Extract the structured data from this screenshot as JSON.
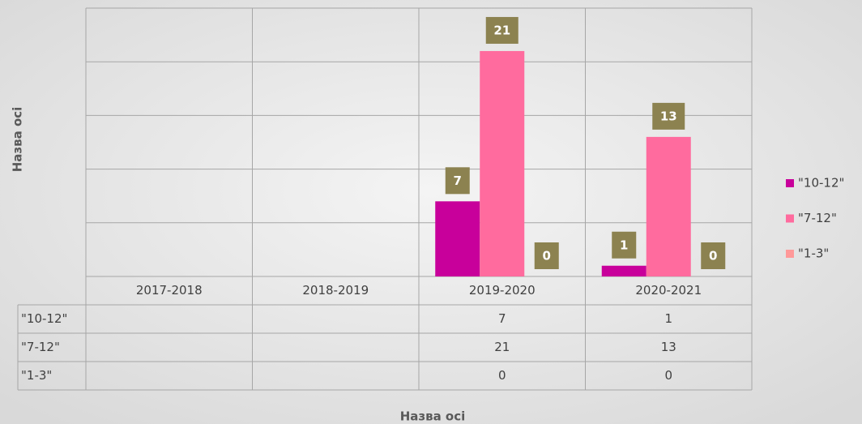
{
  "chart_data": {
    "type": "bar",
    "y_axis_title": "Назва осі",
    "x_axis_title": "Назва осі",
    "categories": [
      "2017-2018",
      "2018-2019",
      "2019-2020",
      "2020-2021"
    ],
    "series": [
      {
        "name": "\"10-12\"",
        "color": "#c8009b",
        "values": [
          null,
          null,
          7,
          1
        ]
      },
      {
        "name": "\"7-12\"",
        "color": "#ff6b9e",
        "values": [
          null,
          null,
          21,
          13
        ]
      },
      {
        "name": "\"1-3\"",
        "color": "#ff9999",
        "values": [
          null,
          null,
          0,
          0
        ]
      }
    ],
    "ylim": [
      0,
      25
    ],
    "yticks": [
      0,
      5,
      10,
      15,
      20,
      25
    ],
    "grid": true,
    "legend": "right",
    "data_table": true,
    "data_label_color": "#8c8250"
  }
}
